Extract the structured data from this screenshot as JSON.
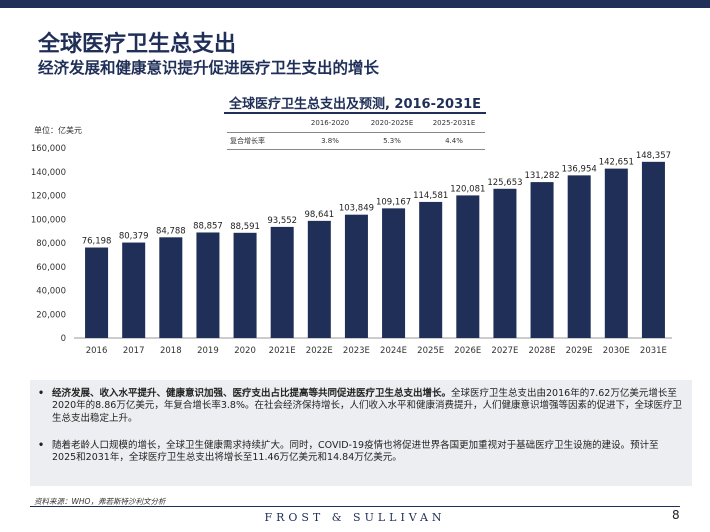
{
  "header": {
    "title": "全球医疗卫生总支出",
    "subtitle": "经济发展和健康意识提升促进医疗卫生支出的增长"
  },
  "chart_data": {
    "type": "bar",
    "title": "全球医疗卫生总支出及预测, 2016-2031E",
    "unit_label": "单位：亿美元",
    "categories": [
      "2016",
      "2017",
      "2018",
      "2019",
      "2020",
      "2021E",
      "2022E",
      "2023E",
      "2024E",
      "2025E",
      "2026E",
      "2027E",
      "2028E",
      "2029E",
      "2030E",
      "2031E"
    ],
    "values": [
      76198,
      80379,
      84788,
      88857,
      88591,
      93552,
      98641,
      103849,
      109167,
      114581,
      120081,
      125653,
      131282,
      136954,
      142651,
      148357
    ],
    "value_labels": [
      "76,198",
      "80,379",
      "84,788",
      "88,857",
      "88,591",
      "93,552",
      "98,641",
      "103,849",
      "109,167",
      "114,581",
      "120,081",
      "125,653",
      "131,282",
      "136,954",
      "142,651",
      "148,357"
    ],
    "y_ticks": [
      "0",
      "20,000",
      "40,000",
      "60,000",
      "80,000",
      "100,000",
      "120,000",
      "140,000",
      "160,000"
    ],
    "ylim": [
      0,
      160000
    ],
    "y_step": 20000,
    "grid": false,
    "bar_color": "#1f2f57"
  },
  "cagr_table": {
    "headers": [
      "2016-2020",
      "2020-2025E",
      "2025-2031E"
    ],
    "row_label": "复合增长率",
    "values": [
      "3.8%",
      "5.3%",
      "4.4%"
    ]
  },
  "notes": [
    {
      "bold": "经济发展、收入水平提升、健康意识加强、医疗支出占比提高等共同促进医疗卫生总支出增长。",
      "text": "全球医疗卫生总支出由2016年的7.62万亿美元增长至2020年的8.86万亿美元，年复合增长率3.8%。在社会经济保持增长，人们收入水平和健康消费提升，人们健康意识增强等因素的促进下，全球医疗卫生总支出稳定上升。"
    },
    {
      "bold": "",
      "text": "随着老龄人口规模的增长，全球卫生健康需求持续扩大。同时，COVID-19疫情也将促进世界各国更加重视对于基础医疗卫生设施的建设。预计至2025和2031年，全球医疗卫生总支出将增长至11.46万亿美元和14.84万亿美元。"
    }
  ],
  "footer": {
    "source": "资料来源：WHO，弗若斯特沙利文分析",
    "brand": "FROST & SULLIVAN",
    "page_number": "8"
  }
}
